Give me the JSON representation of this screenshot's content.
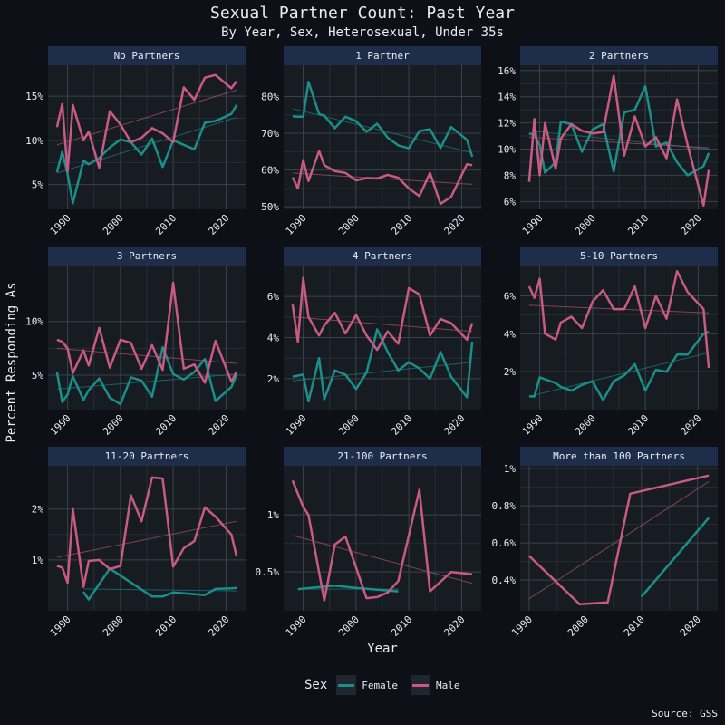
{
  "chart_data": {
    "type": "line",
    "title": "Sexual Partner Count: Past Year",
    "subtitle": "By Year, Sex, Heterosexual, Under 35s",
    "ylabel": "Percent Responding As",
    "xlabel": "Year",
    "caption": "Source: GSS",
    "legend": {
      "title": "Sex",
      "position": "bottom",
      "entries": [
        "Female",
        "Male"
      ]
    },
    "colors": {
      "Female": "#1a8f8a",
      "Male": "#c85a84",
      "background": "#0d1117",
      "panel": "#171c22",
      "strip": "#1e2d4a"
    },
    "panels": [
      {
        "title": "No Partners",
        "ylim": [
          2.2,
          18.5
        ],
        "yticks": [
          5,
          10,
          15
        ],
        "ytick_labels": [
          "5%",
          "10%",
          "15%"
        ],
        "series": [
          {
            "name": "Female",
            "x": [
              1988,
              1989,
              1990,
              1991,
              1993,
              1994,
              1996,
              1998,
              2000,
              2002,
              2004,
              2006,
              2008,
              2010,
              2012,
              2014,
              2016,
              2018,
              2021,
              2022
            ],
            "y": [
              6.4,
              8.7,
              6.2,
              2.9,
              7.7,
              7.3,
              8.0,
              9.2,
              10.1,
              9.8,
              8.4,
              10.2,
              7.0,
              10.0,
              9.5,
              9.0,
              12.0,
              12.2,
              13.0,
              14.0
            ],
            "trend": [
              6.3,
              12.6
            ]
          },
          {
            "name": "Male",
            "x": [
              1988,
              1989,
              1990,
              1991,
              1993,
              1994,
              1996,
              1998,
              2000,
              2002,
              2004,
              2006,
              2008,
              2010,
              2012,
              2014,
              2016,
              2018,
              2021,
              2022
            ],
            "y": [
              11.5,
              14.1,
              6.5,
              14.0,
              10.0,
              11.0,
              6.9,
              13.3,
              11.8,
              9.8,
              10.3,
              11.4,
              10.8,
              9.8,
              16.0,
              14.6,
              17.1,
              17.4,
              15.9,
              16.7
            ],
            "trend": [
              9.5,
              15.7
            ]
          }
        ]
      },
      {
        "title": "1 Partner",
        "ylim": [
          49.3,
          88.5
        ],
        "yticks": [
          50,
          60,
          70,
          80
        ],
        "ytick_labels": [
          "50%",
          "60%",
          "70%",
          "80%"
        ],
        "series": [
          {
            "name": "Female",
            "x": [
              1988,
              1989,
              1990,
              1991,
              1993,
              1994,
              1996,
              1998,
              2000,
              2002,
              2004,
              2006,
              2008,
              2010,
              2012,
              2014,
              2016,
              2018,
              2021,
              2022
            ],
            "y": [
              74.6,
              74.5,
              74.5,
              84.0,
              75.2,
              74.8,
              71.4,
              74.5,
              73.3,
              70.4,
              72.6,
              68.8,
              66.7,
              65.9,
              70.6,
              71.1,
              66.0,
              71.7,
              68.2,
              63.6
            ],
            "trend": [
              76.7,
              64.7
            ]
          },
          {
            "name": "Male",
            "x": [
              1988,
              1989,
              1990,
              1991,
              1993,
              1994,
              1996,
              1998,
              2000,
              2002,
              2004,
              2006,
              2008,
              2010,
              2012,
              2014,
              2016,
              2018,
              2021,
              2022
            ],
            "y": [
              58.0,
              55.0,
              62.7,
              57.0,
              65.2,
              61.3,
              59.7,
              59.2,
              57.2,
              57.8,
              57.7,
              58.7,
              57.9,
              55.0,
              52.9,
              59.2,
              50.8,
              52.7,
              61.6,
              61.3
            ],
            "trend": [
              59.2,
              56.1
            ]
          }
        ]
      },
      {
        "title": "2 Partners",
        "ylim": [
          5.4,
          16.4
        ],
        "yticks": [
          6,
          8,
          10,
          12,
          14,
          16
        ],
        "ytick_labels": [
          "6%",
          "8%",
          "10%",
          "12%",
          "14%",
          "16%"
        ],
        "series": [
          {
            "name": "Female",
            "x": [
              1988,
              1989,
              1990,
              1991,
              1993,
              1994,
              1996,
              1998,
              2000,
              2002,
              2004,
              2006,
              2008,
              2010,
              2012,
              2014,
              2016,
              2018,
              2021,
              2022
            ],
            "y": [
              11.2,
              11.1,
              10.3,
              8.2,
              9.0,
              12.1,
              11.9,
              9.8,
              11.5,
              11.9,
              8.3,
              12.8,
              13.0,
              14.8,
              10.2,
              10.5,
              9.0,
              8.0,
              8.7,
              9.7
            ],
            "trend": [
              11.4,
              10.0
            ]
          },
          {
            "name": "Male",
            "x": [
              1988,
              1989,
              1990,
              1991,
              1993,
              1994,
              1996,
              1998,
              2000,
              2002,
              2004,
              2006,
              2008,
              2010,
              2012,
              2014,
              2016,
              2018,
              2021,
              2022
            ],
            "y": [
              7.5,
              12.3,
              8.0,
              12.0,
              8.5,
              10.8,
              11.9,
              11.4,
              11.2,
              11.3,
              15.6,
              9.5,
              12.5,
              10.2,
              10.9,
              9.3,
              13.8,
              10.3,
              5.7,
              8.4
            ],
            "trend": [
              10.9,
              10.1
            ]
          }
        ]
      },
      {
        "title": "3 Partners",
        "ylim": [
          1.8,
          15.2
        ],
        "yticks": [
          5,
          10
        ],
        "ytick_labels": [
          "5%",
          "10%"
        ],
        "series": [
          {
            "name": "Female",
            "x": [
              1988,
              1989,
              1990,
              1991,
              1993,
              1994,
              1996,
              1998,
              2000,
              2002,
              2004,
              2006,
              2008,
              2010,
              2012,
              2014,
              2016,
              2018,
              2021,
              2022
            ],
            "y": [
              5.3,
              2.5,
              3.2,
              4.9,
              2.7,
              3.6,
              4.7,
              2.9,
              2.3,
              4.8,
              4.5,
              3.0,
              7.6,
              5.1,
              4.6,
              5.3,
              6.5,
              2.6,
              3.9,
              5.0
            ],
            "trend": [
              3.7,
              5.1
            ]
          },
          {
            "name": "Male",
            "x": [
              1988,
              1989,
              1990,
              1991,
              1993,
              1994,
              1996,
              1998,
              2000,
              2002,
              2004,
              2006,
              2008,
              2010,
              2012,
              2014,
              2016,
              2018,
              2021,
              2022
            ],
            "y": [
              8.3,
              8.1,
              7.5,
              5.2,
              7.3,
              5.9,
              9.4,
              5.7,
              8.3,
              8.0,
              5.6,
              7.8,
              5.5,
              13.6,
              5.6,
              6.0,
              4.3,
              8.2,
              4.4,
              5.3
            ],
            "trend": [
              7.5,
              6.1
            ]
          }
        ]
      },
      {
        "title": "4 Partners",
        "ylim": [
          0.5,
          7.5
        ],
        "yticks": [
          2,
          4,
          6
        ],
        "ytick_labels": [
          "2%",
          "4%",
          "6%"
        ],
        "series": [
          {
            "name": "Female",
            "x": [
              1988,
              1989,
              1990,
              1991,
              1993,
              1994,
              1996,
              1998,
              2000,
              2002,
              2004,
              2006,
              2008,
              2010,
              2012,
              2014,
              2016,
              2018,
              2021,
              2022
            ],
            "y": [
              2.1,
              2.15,
              2.2,
              0.9,
              3.0,
              1.0,
              2.4,
              2.2,
              1.5,
              2.3,
              4.4,
              3.3,
              2.4,
              2.8,
              2.5,
              2.0,
              3.3,
              2.1,
              1.1,
              3.8
            ],
            "trend": [
              1.9,
              2.8
            ]
          },
          {
            "name": "Male",
            "x": [
              1988,
              1989,
              1990,
              1991,
              1993,
              1994,
              1996,
              1998,
              2000,
              2002,
              2004,
              2006,
              2008,
              2010,
              2012,
              2014,
              2016,
              2018,
              2021,
              2022
            ],
            "y": [
              5.6,
              3.8,
              6.9,
              5.0,
              4.1,
              4.6,
              5.2,
              4.2,
              5.1,
              4.1,
              3.4,
              4.3,
              3.7,
              6.4,
              6.1,
              4.1,
              4.9,
              4.7,
              3.9,
              4.7
            ],
            "trend": [
              5.0,
              4.3
            ]
          }
        ]
      },
      {
        "title": "5-10 Partners",
        "ylim": [
          0,
          7.6
        ],
        "yticks": [
          2,
          4,
          6
        ],
        "ytick_labels": [
          "2%",
          "4%",
          "6%"
        ],
        "series": [
          {
            "name": "Female",
            "x": [
              1988,
              1989,
              1990,
              1991,
              1993,
              1994,
              1996,
              1998,
              2000,
              2002,
              2004,
              2006,
              2008,
              2010,
              2012,
              2014,
              2016,
              2018,
              2021,
              2022
            ],
            "y": [
              0.7,
              0.7,
              1.7,
              1.6,
              1.4,
              1.2,
              1.0,
              1.3,
              1.5,
              0.5,
              1.5,
              1.8,
              2.4,
              1.0,
              2.1,
              2.0,
              2.9,
              2.9,
              4.0,
              4.1
            ],
            "trend": [
              0.7,
              3.0
            ]
          },
          {
            "name": "Male",
            "x": [
              1988,
              1989,
              1990,
              1991,
              1993,
              1994,
              1996,
              1998,
              2000,
              2002,
              2004,
              2006,
              2008,
              2010,
              2012,
              2014,
              2016,
              2018,
              2021,
              2022
            ],
            "y": [
              6.5,
              5.9,
              6.9,
              4.0,
              3.7,
              4.6,
              4.9,
              4.3,
              5.7,
              6.3,
              5.3,
              5.3,
              6.5,
              4.3,
              6.0,
              4.8,
              7.3,
              6.2,
              5.3,
              2.2
            ],
            "trend": [
              5.5,
              5.1
            ]
          }
        ]
      },
      {
        "title": "11-20 Partners",
        "ylim": [
          0,
          2.85
        ],
        "yticks": [
          1,
          2
        ],
        "ytick_labels": [
          "1%",
          "2%"
        ],
        "series": [
          {
            "name": "Female",
            "x": [
              1993,
              1994,
              1998,
              2006,
              2008,
              2010,
              2016,
              2018,
              2021,
              2022
            ],
            "y": [
              0.37,
              0.22,
              0.83,
              0.28,
              0.28,
              0.36,
              0.31,
              0.43,
              0.44,
              0.45
            ],
            "trend": [
              0.43,
              0.39
            ]
          },
          {
            "name": "Male",
            "x": [
              1988,
              1989,
              1990,
              1991,
              1993,
              1994,
              1996,
              1998,
              2000,
              2002,
              2004,
              2006,
              2008,
              2010,
              2012,
              2014,
              2016,
              2018,
              2021,
              2022
            ],
            "y": [
              0.88,
              0.85,
              0.55,
              2.0,
              0.47,
              0.98,
              1.0,
              0.82,
              0.88,
              2.27,
              1.76,
              2.62,
              2.6,
              0.87,
              1.23,
              1.37,
              2.03,
              1.85,
              1.5,
              1.07
            ],
            "trend": [
              1.05,
              1.76
            ]
          }
        ]
      },
      {
        "title": "21-100 Partners",
        "ylim": [
          0.16,
          1.43
        ],
        "yticks": [
          0.5,
          1
        ],
        "ytick_labels": [
          "0.5%",
          "1%"
        ],
        "series": [
          {
            "name": "Female",
            "x": [
              1989,
              1996,
              2000,
              2008
            ],
            "y": [
              0.35,
              0.38,
              0.36,
              0.33
            ],
            "trend": [
              0.35,
              0.35
            ]
          },
          {
            "name": "Male",
            "x": [
              1988,
              1990,
              1991,
              1994,
              1996,
              1998,
              2002,
              2004,
              2006,
              2008,
              2012,
              2014,
              2018,
              2022
            ],
            "y": [
              1.3,
              1.07,
              1.0,
              0.25,
              0.74,
              0.81,
              0.27,
              0.28,
              0.32,
              0.42,
              1.22,
              0.33,
              0.5,
              0.48
            ],
            "trend": [
              0.82,
              0.4
            ]
          }
        ]
      },
      {
        "title": "More than 100 Partners",
        "ylim": [
          0.235,
          1.015
        ],
        "yticks": [
          0.4,
          0.6,
          0.8,
          1.0
        ],
        "ytick_labels": [
          "0.4%",
          "0.6%",
          "0.8%",
          "1%"
        ],
        "series": [
          {
            "name": "Female",
            "x": [
              2010,
              2022
            ],
            "y": [
              0.31,
              0.735
            ],
            "trend": null
          },
          {
            "name": "Male",
            "x": [
              1990,
              1999,
              2004,
              2008,
              2022
            ],
            "y": [
              0.53,
              0.27,
              0.28,
              0.865,
              0.963
            ],
            "trend": [
              0.3,
              0.93
            ]
          }
        ]
      }
    ]
  }
}
